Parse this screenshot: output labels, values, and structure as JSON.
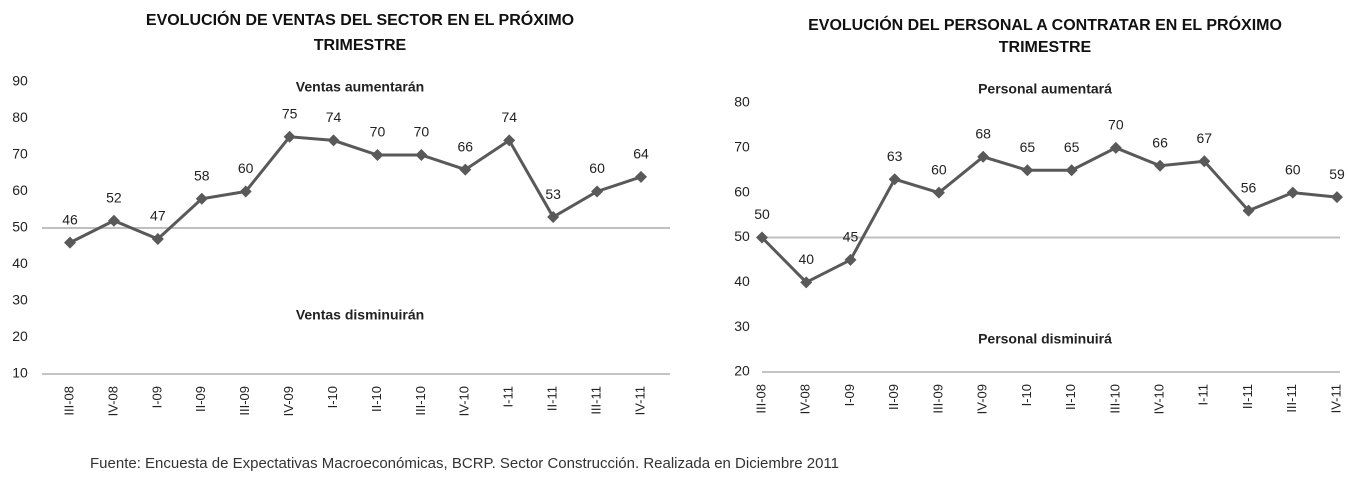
{
  "chart_data": [
    {
      "type": "line",
      "title": "EVOLUCIÓN DE VENTAS DEL SECTOR EN EL PRÓXIMO TRIMESTRE",
      "annotations": [
        "Ventas aumentarán",
        "Ventas disminuirán"
      ],
      "categories": [
        "III-08",
        "IV-08",
        "I-09",
        "II-09",
        "III-09",
        "IV-09",
        "I-10",
        "II-10",
        "III-10",
        "IV-10",
        "I-11",
        "II-11",
        "III-11",
        "IV-11"
      ],
      "values": [
        46,
        52,
        47,
        58,
        60,
        75,
        74,
        70,
        70,
        66,
        74,
        53,
        60,
        64
      ],
      "color": "#595959",
      "reference_line": 50,
      "reference_color": "#bfbfbf",
      "ylim": [
        10,
        90
      ],
      "yticks": [
        10,
        20,
        30,
        40,
        50,
        60,
        70,
        80,
        90
      ]
    },
    {
      "type": "line",
      "title": "EVOLUCIÓN DEL PERSONAL A CONTRATAR EN EL PRÓXIMO TRIMESTRE",
      "annotations": [
        "Personal aumentará",
        "Personal disminuirá"
      ],
      "categories": [
        "III-08",
        "IV-08",
        "I-09",
        "II-09",
        "III-09",
        "IV-09",
        "I-10",
        "II-10",
        "III-10",
        "IV-10",
        "I-11",
        "II-11",
        "III-11",
        "IV-11"
      ],
      "values": [
        50,
        40,
        45,
        63,
        60,
        68,
        65,
        65,
        70,
        66,
        67,
        56,
        60,
        59
      ],
      "color": "#595959",
      "reference_line": 50,
      "reference_color": "#bfbfbf",
      "ylim": [
        20,
        80
      ],
      "yticks": [
        20,
        30,
        40,
        50,
        60,
        70,
        80
      ]
    }
  ],
  "source": "Fuente: Encuesta de Expectativas Macroeconómicas, BCRP. Sector Construcción. Realizada en Diciembre 2011"
}
